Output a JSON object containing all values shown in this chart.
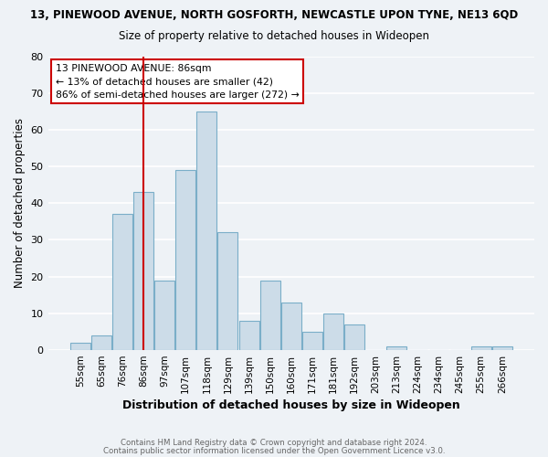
{
  "title_top": "13, PINEWOOD AVENUE, NORTH GOSFORTH, NEWCASTLE UPON TYNE, NE13 6QD",
  "title_sub": "Size of property relative to detached houses in Wideopen",
  "xlabel": "Distribution of detached houses by size in Wideopen",
  "ylabel": "Number of detached properties",
  "bar_labels": [
    "55sqm",
    "65sqm",
    "76sqm",
    "86sqm",
    "97sqm",
    "107sqm",
    "118sqm",
    "129sqm",
    "139sqm",
    "150sqm",
    "160sqm",
    "171sqm",
    "181sqm",
    "192sqm",
    "203sqm",
    "213sqm",
    "224sqm",
    "234sqm",
    "245sqm",
    "255sqm",
    "266sqm"
  ],
  "bar_values": [
    2,
    4,
    37,
    43,
    19,
    49,
    65,
    32,
    8,
    19,
    13,
    5,
    10,
    7,
    0,
    1,
    0,
    0,
    0,
    1,
    1
  ],
  "bar_color": "#ccdce8",
  "bar_edge_color": "#7aaec8",
  "vline_x_index": 3,
  "vline_color": "#cc0000",
  "annotation_title": "13 PINEWOOD AVENUE: 86sqm",
  "annotation_line1": "← 13% of detached houses are smaller (42)",
  "annotation_line2": "86% of semi-detached houses are larger (272) →",
  "annotation_box_color": "#ffffff",
  "annotation_box_edge_color": "#cc0000",
  "ylim": [
    0,
    80
  ],
  "yticks": [
    0,
    10,
    20,
    30,
    40,
    50,
    60,
    70,
    80
  ],
  "footer1": "Contains HM Land Registry data © Crown copyright and database right 2024.",
  "footer2": "Contains public sector information licensed under the Open Government Licence v3.0.",
  "background_color": "#eef2f6",
  "grid_color": "#ffffff"
}
